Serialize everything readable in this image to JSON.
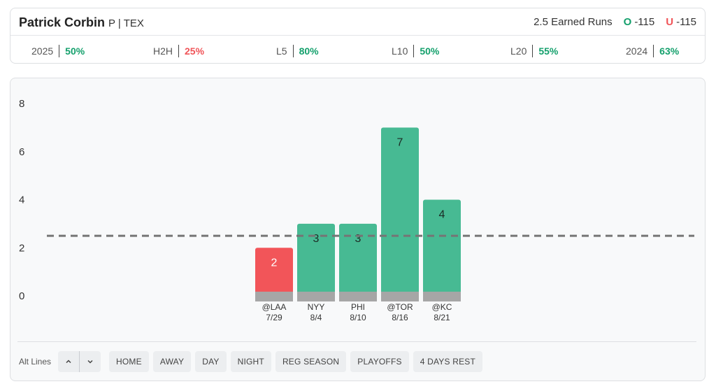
{
  "header": {
    "player_name": "Patrick Corbin",
    "player_pos": "P | TEX",
    "prop": "2.5 Earned Runs",
    "over_letter": "O",
    "over_odds": "-115",
    "under_letter": "U",
    "under_odds": "-115"
  },
  "stats": [
    {
      "label": "2025",
      "value": "50%",
      "status": "good"
    },
    {
      "label": "H2H",
      "value": "25%",
      "status": "bad"
    },
    {
      "label": "L5",
      "value": "80%",
      "status": "good"
    },
    {
      "label": "L10",
      "value": "50%",
      "status": "good"
    },
    {
      "label": "L20",
      "value": "55%",
      "status": "good"
    },
    {
      "label": "2024",
      "value": "63%",
      "status": "good"
    }
  ],
  "colors": {
    "over": "#47ba93",
    "under": "#f25559",
    "base": "#a6a6a6",
    "line": "#757575"
  },
  "chart_data": {
    "type": "bar",
    "categories": [
      "@LAA",
      "NYY",
      "PHI",
      "@TOR",
      "@KC"
    ],
    "dates": [
      "7/29",
      "8/4",
      "8/10",
      "8/16",
      "8/21"
    ],
    "values": [
      2,
      3,
      3,
      7,
      4
    ],
    "line": 2.5,
    "yticks": [
      0,
      2,
      4,
      6,
      8
    ],
    "ylim": [
      0,
      8
    ],
    "grid": false
  },
  "filters": {
    "alt_label": "Alt Lines",
    "buttons": [
      "HOME",
      "AWAY",
      "DAY",
      "NIGHT",
      "REG SEASON",
      "PLAYOFFS",
      "4 DAYS REST"
    ]
  }
}
